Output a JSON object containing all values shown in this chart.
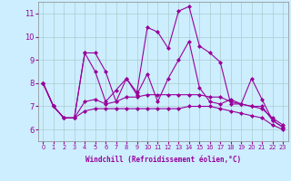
{
  "xlabel": "Windchill (Refroidissement éolien,°C)",
  "background_color": "#cceeff",
  "grid_color": "#aacccc",
  "line_color": "#990099",
  "xlim": [
    -0.5,
    23.5
  ],
  "ylim": [
    5.5,
    11.5
  ],
  "yticks": [
    6,
    7,
    8,
    9,
    10,
    11
  ],
  "xticks": [
    0,
    1,
    2,
    3,
    4,
    5,
    6,
    7,
    8,
    9,
    10,
    11,
    12,
    13,
    14,
    15,
    16,
    17,
    18,
    19,
    20,
    21,
    22,
    23
  ],
  "series": [
    [
      8.0,
      7.0,
      6.5,
      6.5,
      9.3,
      9.3,
      8.5,
      7.2,
      8.2,
      7.6,
      10.4,
      10.2,
      9.5,
      11.1,
      11.3,
      9.6,
      9.3,
      8.9,
      7.1,
      7.1,
      8.2,
      7.3,
      6.4,
      6.1
    ],
    [
      8.0,
      7.0,
      6.5,
      6.5,
      9.3,
      8.5,
      7.2,
      7.7,
      8.2,
      7.5,
      8.4,
      7.2,
      8.2,
      9.0,
      9.8,
      7.8,
      7.2,
      7.1,
      7.3,
      7.1,
      7.0,
      7.0,
      6.4,
      6.1
    ],
    [
      8.0,
      7.0,
      6.5,
      6.5,
      7.2,
      7.3,
      7.1,
      7.2,
      7.4,
      7.4,
      7.5,
      7.5,
      7.5,
      7.5,
      7.5,
      7.5,
      7.4,
      7.4,
      7.2,
      7.1,
      7.0,
      6.9,
      6.5,
      6.2
    ],
    [
      8.0,
      7.0,
      6.5,
      6.5,
      6.8,
      6.9,
      6.9,
      6.9,
      6.9,
      6.9,
      6.9,
      6.9,
      6.9,
      6.9,
      7.0,
      7.0,
      7.0,
      6.9,
      6.8,
      6.7,
      6.6,
      6.5,
      6.2,
      6.0
    ]
  ]
}
